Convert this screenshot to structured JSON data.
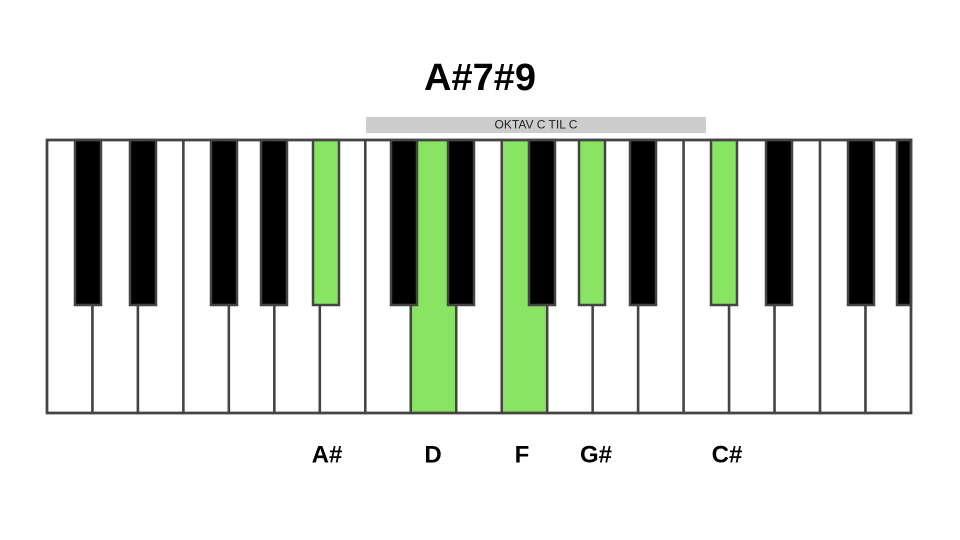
{
  "title": "A#7#9",
  "octave_label": "OKTAV C TIL C",
  "notes": [
    "A#",
    "D",
    "F",
    "G#",
    "C#"
  ]
}
